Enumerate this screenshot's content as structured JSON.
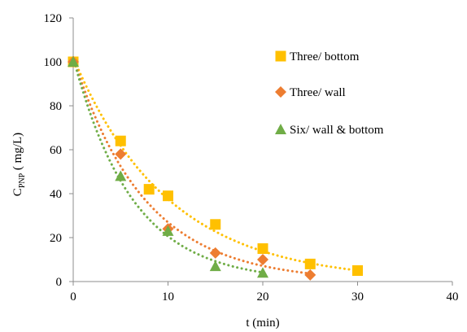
{
  "chart_data": {
    "type": "scatter",
    "xlabel": "t (min)",
    "ylabel": {
      "main": "C",
      "sub": "PNP",
      "suffix": " ( mg/L)"
    },
    "xlim": [
      0,
      40
    ],
    "ylim": [
      0,
      120
    ],
    "xticks": [
      0,
      10,
      20,
      30,
      40
    ],
    "yticks": [
      0,
      20,
      40,
      60,
      80,
      100,
      120
    ],
    "grid": false,
    "legend_position": "top-right",
    "series": [
      {
        "name": "Three/ bottom",
        "marker": "square",
        "color": "#FFC000",
        "trend_color": "#FFC000",
        "x": [
          0,
          5,
          8,
          10,
          15,
          20,
          25,
          30
        ],
        "y": [
          100,
          64,
          42,
          39,
          26,
          15,
          8,
          5
        ],
        "trend_decay_rate": 0.1
      },
      {
        "name": "Three/ wall",
        "marker": "diamond",
        "color": "#ED7D31",
        "trend_color": "#ED7D31",
        "x": [
          0,
          5,
          10,
          15,
          20,
          25
        ],
        "y": [
          100,
          58,
          24,
          13,
          10,
          3
        ],
        "trend_decay_rate": 0.133
      },
      {
        "name": "Six/ wall & bottom",
        "marker": "triangle",
        "color": "#70AD47",
        "trend_color": "#70AD47",
        "x": [
          0,
          5,
          10,
          15,
          20
        ],
        "y": [
          100,
          48,
          23,
          7,
          4
        ],
        "trend_decay_rate": 0.16
      }
    ]
  }
}
